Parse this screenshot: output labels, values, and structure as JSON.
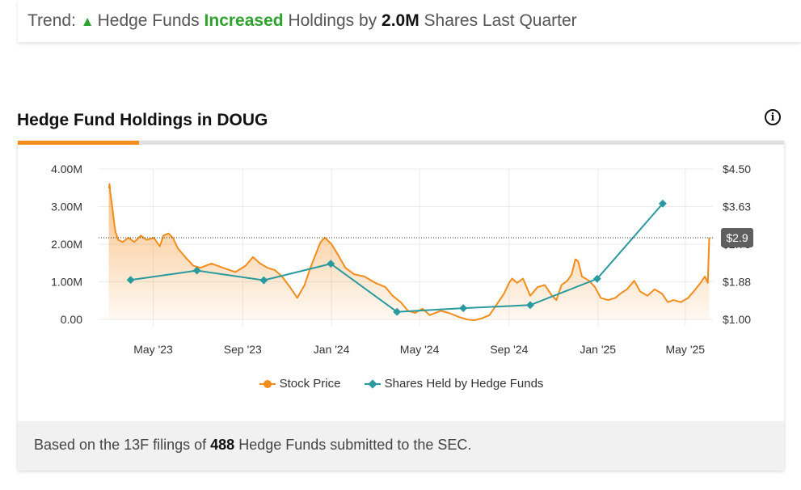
{
  "trend": {
    "prefix": "Trend:",
    "arrow": "▲",
    "text1": "Hedge Funds",
    "direction": "Increased",
    "text2": "Holdings by",
    "amount": "2.0M",
    "text3": "Shares Last Quarter"
  },
  "section": {
    "title": "Hedge Fund Holdings in DOUG",
    "info_icon": "info-circle-icon"
  },
  "colors": {
    "accent": "#f28c1b",
    "price": "#f28c1b",
    "hedge": "#2a9a9e",
    "trend_up": "#2ea12e"
  },
  "chart_data": {
    "type": "line",
    "x_range": [
      "2023-02-15",
      "2025-06-08"
    ],
    "x_ticks": [
      {
        "date": "2023-05-01",
        "label": "May '23"
      },
      {
        "date": "2023-09-01",
        "label": "Sep '23"
      },
      {
        "date": "2024-01-01",
        "label": "Jan '24"
      },
      {
        "date": "2024-05-01",
        "label": "May '24"
      },
      {
        "date": "2024-09-01",
        "label": "Sep '24"
      },
      {
        "date": "2025-01-01",
        "label": "Jan '25"
      },
      {
        "date": "2025-05-01",
        "label": "May '25"
      }
    ],
    "y_left": {
      "min": 0,
      "max": 4000000,
      "ticks": [
        "0.00",
        "1.00M",
        "2.00M",
        "3.00M",
        "4.00M"
      ]
    },
    "y_right": {
      "min": 1.0,
      "max": 4.5,
      "ticks": [
        "$1.00",
        "$1.88",
        "$2.75",
        "$3.63",
        "$4.50"
      ]
    },
    "current_price_label": "$2.9",
    "current_price": 2.9,
    "series": [
      {
        "name": "Stock Price",
        "axis": "right",
        "style": "area",
        "points": [
          [
            "2023-03-01",
            4.05
          ],
          [
            "2023-03-02",
            4.15
          ],
          [
            "2023-03-03",
            3.95
          ],
          [
            "2023-03-06",
            3.6
          ],
          [
            "2023-03-08",
            3.3
          ],
          [
            "2023-03-10",
            3.05
          ],
          [
            "2023-03-14",
            2.85
          ],
          [
            "2023-03-20",
            2.8
          ],
          [
            "2023-03-28",
            2.9
          ],
          [
            "2023-04-05",
            2.8
          ],
          [
            "2023-04-14",
            2.95
          ],
          [
            "2023-04-22",
            2.85
          ],
          [
            "2023-05-02",
            2.9
          ],
          [
            "2023-05-10",
            2.7
          ],
          [
            "2023-05-15",
            2.95
          ],
          [
            "2023-05-22",
            3.0
          ],
          [
            "2023-05-28",
            2.9
          ],
          [
            "2023-06-04",
            2.65
          ],
          [
            "2023-06-14",
            2.45
          ],
          [
            "2023-06-25",
            2.25
          ],
          [
            "2023-07-05",
            2.2
          ],
          [
            "2023-07-20",
            2.3
          ],
          [
            "2023-08-05",
            2.2
          ],
          [
            "2023-08-22",
            2.1
          ],
          [
            "2023-09-05",
            2.25
          ],
          [
            "2023-09-15",
            2.45
          ],
          [
            "2023-09-25",
            2.3
          ],
          [
            "2023-10-05",
            2.2
          ],
          [
            "2023-10-15",
            2.15
          ],
          [
            "2023-10-25",
            2.0
          ],
          [
            "2023-11-05",
            1.75
          ],
          [
            "2023-11-15",
            1.5
          ],
          [
            "2023-11-25",
            1.8
          ],
          [
            "2023-12-03",
            2.2
          ],
          [
            "2023-12-10",
            2.5
          ],
          [
            "2023-12-17",
            2.8
          ],
          [
            "2023-12-23",
            2.9
          ],
          [
            "2024-01-01",
            2.75
          ],
          [
            "2024-01-10",
            2.5
          ],
          [
            "2024-01-20",
            2.2
          ],
          [
            "2024-02-01",
            2.05
          ],
          [
            "2024-02-15",
            2.0
          ],
          [
            "2024-03-01",
            1.85
          ],
          [
            "2024-03-15",
            1.75
          ],
          [
            "2024-03-25",
            1.55
          ],
          [
            "2024-04-05",
            1.4
          ],
          [
            "2024-04-15",
            1.2
          ],
          [
            "2024-04-25",
            1.15
          ],
          [
            "2024-05-05",
            1.25
          ],
          [
            "2024-05-15",
            1.1
          ],
          [
            "2024-05-30",
            1.2
          ],
          [
            "2024-06-10",
            1.15
          ],
          [
            "2024-06-25",
            1.05
          ],
          [
            "2024-07-05",
            1.0
          ],
          [
            "2024-07-15",
            0.98
          ],
          [
            "2024-07-25",
            1.02
          ],
          [
            "2024-08-05",
            1.1
          ],
          [
            "2024-08-15",
            1.35
          ],
          [
            "2024-08-25",
            1.6
          ],
          [
            "2024-09-01",
            1.85
          ],
          [
            "2024-09-05",
            1.95
          ],
          [
            "2024-09-12",
            1.85
          ],
          [
            "2024-09-20",
            1.95
          ],
          [
            "2024-09-30",
            1.55
          ],
          [
            "2024-10-10",
            1.75
          ],
          [
            "2024-10-20",
            1.8
          ],
          [
            "2024-10-30",
            1.55
          ],
          [
            "2024-11-05",
            1.45
          ],
          [
            "2024-11-12",
            1.8
          ],
          [
            "2024-11-20",
            1.9
          ],
          [
            "2024-11-26",
            2.05
          ],
          [
            "2024-12-01",
            2.4
          ],
          [
            "2024-12-05",
            2.35
          ],
          [
            "2024-12-10",
            2.0
          ],
          [
            "2024-12-20",
            1.9
          ],
          [
            "2024-12-28",
            1.75
          ],
          [
            "2025-01-05",
            1.5
          ],
          [
            "2025-01-15",
            1.45
          ],
          [
            "2025-01-25",
            1.5
          ],
          [
            "2025-02-01",
            1.6
          ],
          [
            "2025-02-10",
            1.7
          ],
          [
            "2025-02-20",
            1.9
          ],
          [
            "2025-02-28",
            1.65
          ],
          [
            "2025-03-10",
            1.55
          ],
          [
            "2025-03-20",
            1.7
          ],
          [
            "2025-03-30",
            1.6
          ],
          [
            "2025-04-07",
            1.4
          ],
          [
            "2025-04-15",
            1.45
          ],
          [
            "2025-04-25",
            1.4
          ],
          [
            "2025-05-05",
            1.5
          ],
          [
            "2025-05-15",
            1.7
          ],
          [
            "2025-05-22",
            1.85
          ],
          [
            "2025-05-28",
            2.0
          ],
          [
            "2025-06-01",
            1.85
          ],
          [
            "2025-06-03",
            2.9
          ]
        ]
      },
      {
        "name": "Shares Held by Hedge Funds",
        "axis": "left",
        "style": "line-markers",
        "points": [
          [
            "2023-03-31",
            1050000
          ],
          [
            "2023-06-30",
            1300000
          ],
          [
            "2023-09-30",
            1040000
          ],
          [
            "2023-12-31",
            1480000
          ],
          [
            "2024-03-31",
            200000
          ],
          [
            "2024-06-30",
            300000
          ],
          [
            "2024-09-30",
            380000
          ],
          [
            "2024-12-31",
            1080000
          ],
          [
            "2025-03-31",
            3080000
          ]
        ]
      }
    ]
  },
  "legend": {
    "price_label": "Stock Price",
    "hedge_label": "Shares Held by Hedge Funds"
  },
  "footer": {
    "prefix": "Based on the 13F filings of",
    "count": "488",
    "suffix": "Hedge Funds submitted to the SEC."
  }
}
